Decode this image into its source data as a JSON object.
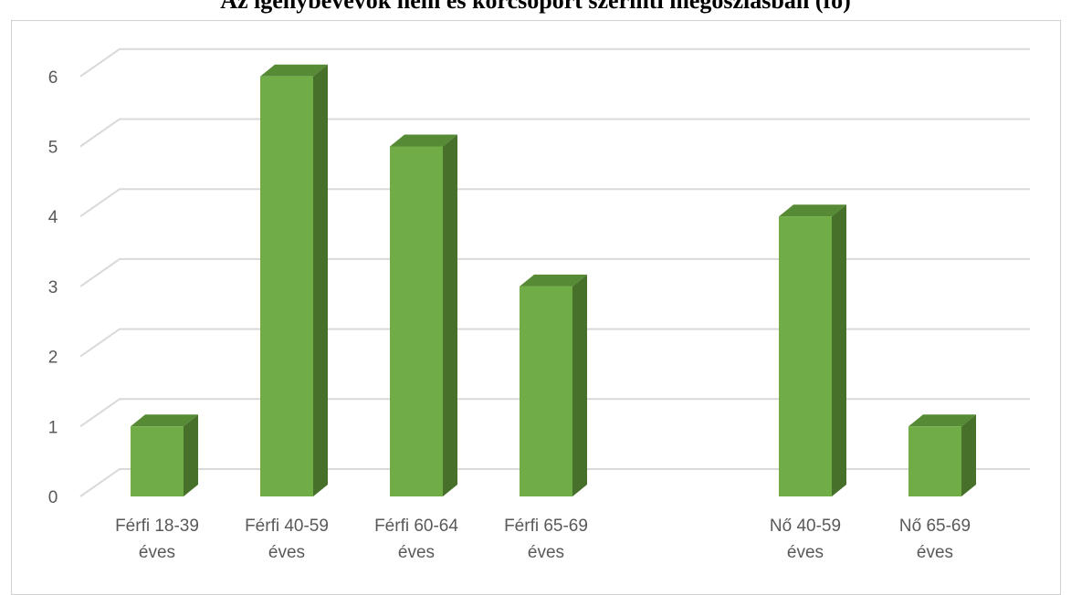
{
  "chart_data": {
    "type": "bar",
    "title": "Az igénybevevők nem és korcsoport szerinti megoszlásban (fő)",
    "categories": [
      [
        "Férfi 18-39",
        "éves"
      ],
      [
        "Férfi 40-59",
        "éves"
      ],
      [
        "Férfi 60-64",
        "éves"
      ],
      [
        "Férfi 65-69",
        "éves"
      ],
      [
        "",
        ""
      ],
      [
        "Nő 40-59",
        "éves"
      ],
      [
        "Nő 65-69",
        "éves"
      ]
    ],
    "values": [
      1,
      6,
      5,
      3,
      0,
      4,
      1
    ],
    "ylim": [
      0,
      6
    ],
    "yticks": [
      0,
      1,
      2,
      3,
      4,
      5,
      6
    ],
    "grid": true,
    "colors": {
      "front": "#70ad47",
      "side": "#47702b",
      "top": "#568a35",
      "grid": "#d9d9d9"
    }
  }
}
